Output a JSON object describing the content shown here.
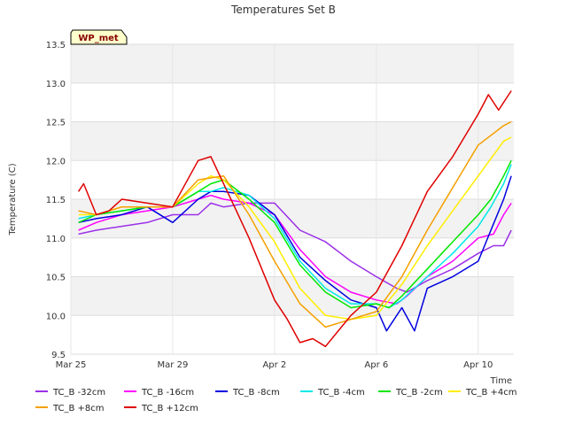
{
  "chart_data": {
    "type": "line",
    "title": "Temperatures Set B",
    "xlabel": "Time",
    "ylabel": "Temperature (C)",
    "badge": "WP_met",
    "xlim": [
      0,
      17.4
    ],
    "ylim": [
      9.5,
      13.5
    ],
    "x_ticks": [
      {
        "x": 0,
        "label": "Mar 25"
      },
      {
        "x": 4,
        "label": "Mar 29"
      },
      {
        "x": 8,
        "label": "Apr 2"
      },
      {
        "x": 12,
        "label": "Apr 6"
      },
      {
        "x": 16,
        "label": "Apr 10"
      }
    ],
    "y_ticks": [
      9.5,
      10.0,
      10.5,
      11.0,
      11.5,
      12.0,
      12.5,
      13.0,
      13.5
    ],
    "y_tick_labels": [
      "9.5",
      "10.0",
      "10.5",
      "11.0",
      "11.5",
      "12.0",
      "12.5",
      "13.0",
      "13.5"
    ],
    "grid": true,
    "legend_position": "bottom",
    "series": [
      {
        "name": "TC_B -32cm",
        "color": "#9b30e8",
        "x": [
          0.3,
          1,
          2,
          3,
          4,
          5,
          5.5,
          6,
          7,
          8,
          9,
          10,
          11,
          12,
          12.8,
          13.2,
          14,
          15,
          16,
          16.6,
          17.0,
          17.3
        ],
        "y": [
          11.05,
          11.1,
          11.15,
          11.2,
          11.3,
          11.3,
          11.45,
          11.4,
          11.45,
          11.45,
          11.1,
          10.95,
          10.7,
          10.5,
          10.35,
          10.3,
          10.45,
          10.6,
          10.8,
          10.9,
          10.9,
          11.1
        ]
      },
      {
        "name": "TC_B +8cm",
        "color": "#f5a000",
        "x": [
          0.3,
          1,
          2,
          3,
          4,
          5,
          6,
          7,
          8,
          9,
          10,
          11,
          12,
          13,
          14,
          15,
          16,
          17,
          17.3
        ],
        "y": [
          11.35,
          11.3,
          11.4,
          11.4,
          11.4,
          11.75,
          11.8,
          11.3,
          10.7,
          10.15,
          9.85,
          9.95,
          10.05,
          10.5,
          11.1,
          11.65,
          12.2,
          12.45,
          12.5
        ]
      },
      {
        "name": "TC_B -16cm",
        "color": "#ff00ff",
        "x": [
          0.3,
          1,
          2,
          3,
          4,
          5,
          5.5,
          6,
          7,
          8,
          9,
          10,
          11,
          12,
          12.8,
          13.2,
          14,
          15,
          16,
          16.6,
          17.0,
          17.3
        ],
        "y": [
          11.1,
          11.2,
          11.3,
          11.35,
          11.4,
          11.5,
          11.55,
          11.5,
          11.45,
          11.3,
          10.85,
          10.5,
          10.3,
          10.2,
          10.15,
          10.25,
          10.5,
          10.7,
          11.0,
          11.05,
          11.3,
          11.45
        ]
      },
      {
        "name": "TC_B +12cm",
        "color": "#e00000",
        "x": [
          0.3,
          0.5,
          1,
          1.5,
          2,
          3,
          4,
          5,
          5.5,
          6,
          6.5,
          7,
          7.5,
          8,
          8.5,
          9,
          9.5,
          10,
          11,
          12,
          13,
          14,
          15,
          16,
          16.4,
          16.8,
          17.3
        ],
        "y": [
          11.6,
          11.7,
          11.3,
          11.35,
          11.5,
          11.45,
          11.4,
          12.0,
          12.05,
          11.7,
          11.35,
          11.0,
          10.6,
          10.2,
          9.95,
          9.65,
          9.7,
          9.6,
          10.0,
          10.3,
          10.9,
          11.6,
          12.05,
          12.6,
          12.85,
          12.65,
          12.9
        ]
      },
      {
        "name": "TC_B -8cm",
        "color": "#0000e0",
        "x": [
          0.3,
          1,
          2,
          3,
          4,
          5,
          5.5,
          6,
          7,
          8,
          9,
          10,
          11,
          12,
          12.4,
          13,
          13.5,
          14,
          15,
          16,
          16.5,
          17,
          17.3
        ],
        "y": [
          11.2,
          11.25,
          11.3,
          11.4,
          11.2,
          11.5,
          11.6,
          11.6,
          11.55,
          11.3,
          10.75,
          10.45,
          10.2,
          10.1,
          9.8,
          10.1,
          9.8,
          10.35,
          10.5,
          10.7,
          11.1,
          11.5,
          11.8
        ]
      },
      {
        "name": "TC_B -4cm",
        "color": "#00e8e8",
        "x": [
          0.3,
          1,
          2,
          3,
          4,
          5,
          5.5,
          6,
          7,
          8,
          9,
          10,
          11,
          12,
          12.5,
          13,
          14,
          15,
          16,
          16.5,
          17,
          17.3
        ],
        "y": [
          11.25,
          11.3,
          11.35,
          11.4,
          11.4,
          11.6,
          11.6,
          11.65,
          11.55,
          11.25,
          10.7,
          10.35,
          10.15,
          10.15,
          10.1,
          10.2,
          10.5,
          10.8,
          11.15,
          11.4,
          11.7,
          11.95
        ]
      },
      {
        "name": "TC_B -2cm",
        "color": "#00e800",
        "x": [
          0.3,
          1,
          2,
          3,
          4,
          5,
          5.5,
          6,
          7,
          8,
          9,
          10,
          11,
          12,
          12.5,
          13,
          14,
          15,
          16,
          16.5,
          17,
          17.3
        ],
        "y": [
          11.2,
          11.3,
          11.35,
          11.4,
          11.4,
          11.6,
          11.7,
          11.75,
          11.5,
          11.2,
          10.65,
          10.3,
          10.1,
          10.15,
          10.1,
          10.25,
          10.6,
          10.95,
          11.3,
          11.5,
          11.8,
          12.0
        ]
      },
      {
        "name": "TC_B +4cm",
        "color": "#ffee00",
        "x": [
          0.3,
          1,
          2,
          3,
          4,
          5,
          5.5,
          6,
          7,
          8,
          9,
          10,
          11,
          12,
          13,
          14,
          15,
          16,
          17,
          17.3
        ],
        "y": [
          11.3,
          11.3,
          11.4,
          11.4,
          11.4,
          11.7,
          11.8,
          11.75,
          11.4,
          10.95,
          10.35,
          10.0,
          9.95,
          10.0,
          10.4,
          10.9,
          11.35,
          11.8,
          12.25,
          12.3
        ]
      }
    ]
  }
}
